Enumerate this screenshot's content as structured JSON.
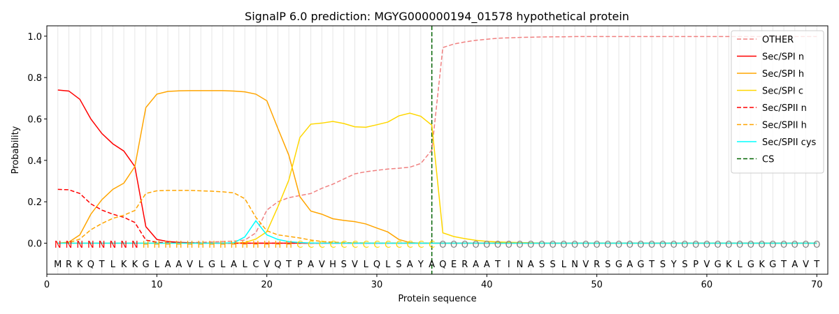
{
  "chart_data": {
    "type": "line",
    "title": "SignalP 6.0 prediction: MGYG000000194_01578 hypothetical protein",
    "xlabel": "Protein sequence",
    "ylabel": "Probability",
    "xlim": [
      0,
      71
    ],
    "ylim": [
      -0.15,
      1.05
    ],
    "xticks": [
      0,
      10,
      20,
      30,
      40,
      50,
      60,
      70
    ],
    "yticks": [
      0.0,
      0.2,
      0.4,
      0.6,
      0.8,
      1.0
    ],
    "ytick_labels": [
      "0.0",
      "0.2",
      "0.4",
      "0.6",
      "0.8",
      "1.0"
    ],
    "grid": "vertical lines at each residue",
    "legend_position": "top-right",
    "sequence": [
      "M",
      "R",
      "K",
      "Q",
      "T",
      "L",
      "K",
      "K",
      "G",
      "L",
      "A",
      "A",
      "V",
      "L",
      "G",
      "L",
      "A",
      "L",
      "C",
      "V",
      "Q",
      "T",
      "P",
      "A",
      "V",
      "H",
      "S",
      "V",
      "L",
      "Q",
      "L",
      "S",
      "A",
      "Y",
      "A",
      "Q",
      "E",
      "R",
      "A",
      "A",
      "T",
      "I",
      "N",
      "A",
      "S",
      "S",
      "L",
      "N",
      "V",
      "R",
      "S",
      "G",
      "A",
      "G",
      "T",
      "S",
      "Y",
      "S",
      "P",
      "V",
      "G",
      "K",
      "L",
      "G",
      "K",
      "G",
      "T",
      "A",
      "V",
      "T"
    ],
    "regions": [
      "N",
      "N",
      "N",
      "N",
      "N",
      "N",
      "N",
      "N",
      "H",
      "H",
      "H",
      "H",
      "H",
      "H",
      "H",
      "H",
      "H",
      "H",
      "H",
      "H",
      "H",
      "H",
      "C",
      "C",
      "C",
      "C",
      "C",
      "C",
      "C",
      "C",
      "C",
      "C",
      "C",
      "C",
      "C",
      "O",
      "O",
      "O",
      "O",
      "O",
      "O",
      "O",
      "O",
      "O",
      "O",
      "O",
      "O",
      "O",
      "O",
      "O",
      "O",
      "O",
      "O",
      "O",
      "O",
      "O",
      "O",
      "O",
      "O",
      "O",
      "O",
      "O",
      "O",
      "O",
      "O",
      "O",
      "O",
      "O",
      "O",
      "O"
    ],
    "region_colors": {
      "N": "#ff0000",
      "H": "#ffa500",
      "C": "#ffd700",
      "O": "#808080"
    },
    "cleavage_site": 35,
    "cleavage_color": "#006400",
    "series": [
      {
        "name": "OTHER",
        "color": "#f08080",
        "dash": "dashed",
        "values": [
          0.0,
          0.0,
          0.0,
          0.0,
          0.0,
          0.0,
          0.0,
          0.0,
          0.0,
          0.0,
          0.0,
          0.002,
          0.003,
          0.004,
          0.006,
          0.008,
          0.01,
          0.015,
          0.05,
          0.16,
          0.2,
          0.22,
          0.23,
          0.24,
          0.265,
          0.285,
          0.31,
          0.335,
          0.345,
          0.352,
          0.358,
          0.362,
          0.367,
          0.385,
          0.45,
          0.945,
          0.962,
          0.972,
          0.98,
          0.985,
          0.99,
          0.992,
          0.994,
          0.995,
          0.996,
          0.997,
          0.997,
          0.998,
          0.998,
          0.998,
          0.998,
          0.998,
          0.998,
          0.998,
          0.998,
          0.998,
          0.998,
          0.998,
          0.998,
          0.998,
          0.998,
          0.998,
          0.998,
          0.998,
          0.998,
          0.998,
          0.998,
          0.998,
          0.998,
          0.998
        ]
      },
      {
        "name": "Sec/SPI n",
        "color": "#ff0000",
        "dash": "solid",
        "values": [
          0.74,
          0.735,
          0.695,
          0.6,
          0.53,
          0.48,
          0.445,
          0.37,
          0.08,
          0.018,
          0.008,
          0.004,
          0.002,
          0.001,
          0.0,
          0.0,
          0.0,
          0.0,
          0.0,
          0.0,
          0.0,
          0.0,
          0.0,
          0.0,
          0.0,
          0.0,
          0.0,
          0.0,
          0.0,
          0.0,
          0.0,
          0.0,
          0.0,
          0.0,
          0.0,
          0.0,
          0.0,
          0.0,
          0.0,
          0.0,
          0.0,
          0.0,
          0.0,
          0.0,
          0.0,
          0.0,
          0.0,
          0.0,
          0.0,
          0.0,
          0.0,
          0.0,
          0.0,
          0.0,
          0.0,
          0.0,
          0.0,
          0.0,
          0.0,
          0.0,
          0.0,
          0.0,
          0.0,
          0.0,
          0.0,
          0.0,
          0.0,
          0.0,
          0.0,
          0.0
        ]
      },
      {
        "name": "Sec/SPI h",
        "color": "#ffa500",
        "dash": "solid",
        "values": [
          0.0,
          0.005,
          0.04,
          0.14,
          0.21,
          0.26,
          0.29,
          0.37,
          0.655,
          0.72,
          0.733,
          0.736,
          0.737,
          0.737,
          0.737,
          0.737,
          0.735,
          0.731,
          0.72,
          0.688,
          0.555,
          0.425,
          0.225,
          0.155,
          0.14,
          0.118,
          0.11,
          0.104,
          0.093,
          0.073,
          0.054,
          0.018,
          0.003,
          0.0,
          0.0,
          0.0,
          0.0,
          0.0,
          0.0,
          0.0,
          0.0,
          0.0,
          0.0,
          0.0,
          0.0,
          0.0,
          0.0,
          0.0,
          0.0,
          0.0,
          0.0,
          0.0,
          0.0,
          0.0,
          0.0,
          0.0,
          0.0,
          0.0,
          0.0,
          0.0,
          0.0,
          0.0,
          0.0,
          0.0,
          0.0,
          0.0,
          0.0,
          0.0,
          0.0,
          0.0
        ]
      },
      {
        "name": "Sec/SPI c",
        "color": "#ffd700",
        "dash": "solid",
        "values": [
          0.0,
          0.0,
          0.0,
          0.0,
          0.0,
          0.0,
          0.0,
          0.0,
          0.0,
          0.0,
          0.0,
          0.0,
          0.0,
          0.0,
          0.0,
          0.0,
          0.0,
          0.003,
          0.02,
          0.055,
          0.175,
          0.305,
          0.51,
          0.575,
          0.58,
          0.588,
          0.578,
          0.562,
          0.56,
          0.572,
          0.585,
          0.615,
          0.628,
          0.613,
          0.57,
          0.05,
          0.032,
          0.022,
          0.014,
          0.009,
          0.006,
          0.004,
          0.003,
          0.002,
          0.001,
          0.0,
          0.0,
          0.0,
          0.0,
          0.0,
          0.0,
          0.0,
          0.0,
          0.0,
          0.0,
          0.0,
          0.0,
          0.0,
          0.0,
          0.0,
          0.0,
          0.0,
          0.0,
          0.0,
          0.0,
          0.0,
          0.0,
          0.0,
          0.0,
          0.0
        ]
      },
      {
        "name": "Sec/SPII n",
        "color": "#ff0000",
        "dash": "dashed",
        "values": [
          0.26,
          0.258,
          0.24,
          0.19,
          0.16,
          0.14,
          0.125,
          0.1,
          0.015,
          0.004,
          0.002,
          0.001,
          0.0,
          0.0,
          0.0,
          0.0,
          0.0,
          0.0,
          0.0,
          0.0,
          0.0,
          0.0,
          0.0,
          0.0,
          0.0,
          0.0,
          0.0,
          0.0,
          0.0,
          0.0,
          0.0,
          0.0,
          0.0,
          0.0,
          0.0,
          0.0,
          0.0,
          0.0,
          0.0,
          0.0,
          0.0,
          0.0,
          0.0,
          0.0,
          0.0,
          0.0,
          0.0,
          0.0,
          0.0,
          0.0,
          0.0,
          0.0,
          0.0,
          0.0,
          0.0,
          0.0,
          0.0,
          0.0,
          0.0,
          0.0,
          0.0,
          0.0,
          0.0,
          0.0,
          0.0,
          0.0,
          0.0,
          0.0,
          0.0,
          0.0
        ]
      },
      {
        "name": "Sec/SPII h",
        "color": "#ffa500",
        "dash": "dashed",
        "values": [
          0.0,
          0.002,
          0.02,
          0.065,
          0.095,
          0.12,
          0.135,
          0.158,
          0.24,
          0.253,
          0.255,
          0.255,
          0.255,
          0.253,
          0.251,
          0.248,
          0.243,
          0.215,
          0.125,
          0.06,
          0.04,
          0.033,
          0.025,
          0.015,
          0.008,
          0.005,
          0.003,
          0.002,
          0.001,
          0.001,
          0.0,
          0.0,
          0.0,
          0.0,
          0.0,
          0.0,
          0.0,
          0.0,
          0.0,
          0.0,
          0.0,
          0.0,
          0.0,
          0.0,
          0.0,
          0.0,
          0.0,
          0.0,
          0.0,
          0.0,
          0.0,
          0.0,
          0.0,
          0.0,
          0.0,
          0.0,
          0.0,
          0.0,
          0.0,
          0.0,
          0.0,
          0.0,
          0.0,
          0.0,
          0.0,
          0.0,
          0.0,
          0.0,
          0.0,
          0.0
        ]
      },
      {
        "name": "Sec/SPII cys",
        "color": "#00ffff",
        "dash": "solid",
        "values": [
          0.0,
          0.0,
          0.0,
          0.0,
          0.0,
          0.0,
          0.0,
          0.0,
          0.0,
          0.0,
          0.0,
          0.0,
          0.0,
          0.0,
          0.0,
          0.0,
          0.002,
          0.03,
          0.108,
          0.04,
          0.018,
          0.007,
          0.003,
          0.001,
          0.0,
          0.0,
          0.0,
          0.0,
          0.0,
          0.0,
          0.0,
          0.0,
          0.0,
          0.0,
          0.0,
          0.0,
          0.0,
          0.0,
          0.0,
          0.0,
          0.0,
          0.0,
          0.0,
          0.0,
          0.0,
          0.0,
          0.0,
          0.0,
          0.0,
          0.0,
          0.0,
          0.0,
          0.0,
          0.0,
          0.0,
          0.0,
          0.0,
          0.0,
          0.0,
          0.0,
          0.0,
          0.0,
          0.0,
          0.0,
          0.0,
          0.0,
          0.0,
          0.0,
          0.0,
          0.0
        ]
      }
    ],
    "legend_entries": [
      {
        "name": "OTHER",
        "color": "#f08080",
        "dash": "dashed"
      },
      {
        "name": "Sec/SPI n",
        "color": "#ff0000",
        "dash": "solid"
      },
      {
        "name": "Sec/SPI h",
        "color": "#ffa500",
        "dash": "solid"
      },
      {
        "name": "Sec/SPI c",
        "color": "#ffd700",
        "dash": "solid"
      },
      {
        "name": "Sec/SPII n",
        "color": "#ff0000",
        "dash": "dashed"
      },
      {
        "name": "Sec/SPII h",
        "color": "#ffa500",
        "dash": "dashed"
      },
      {
        "name": "Sec/SPII cys",
        "color": "#00ffff",
        "dash": "solid"
      },
      {
        "name": "CS",
        "color": "#006400",
        "dash": "dashed"
      }
    ]
  }
}
